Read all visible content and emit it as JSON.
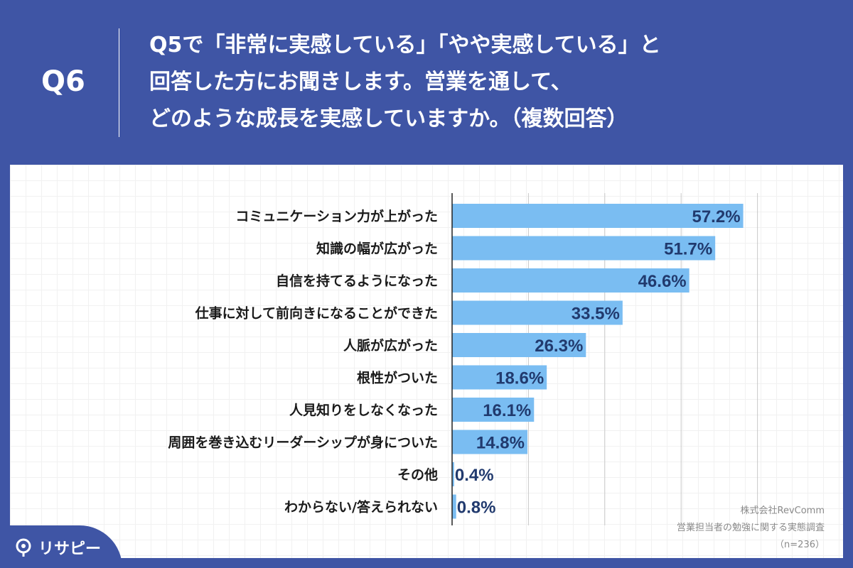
{
  "question": {
    "number": "Q6",
    "lines": [
      "Q5で「非常に実感している」「やや実感している」と",
      "回答した方にお聞きします。営業を通して、",
      "どのような成長を実感していますか。（複数回答）"
    ]
  },
  "chart_data": {
    "type": "bar",
    "orientation": "horizontal",
    "categories": [
      "コミュニケーション力が上がった",
      "知識の幅が広がった",
      "自信を持てるようになった",
      "仕事に対して前向きになることができた",
      "人脈が広がった",
      "根性がついた",
      "人見知りをしなくなった",
      "周囲を巻き込むリーダーシップが身についた",
      "その他",
      "わからない/答えられない"
    ],
    "values": [
      57.2,
      51.7,
      46.6,
      33.5,
      26.3,
      18.6,
      16.1,
      14.8,
      0.4,
      0.8
    ],
    "value_labels": [
      "57.2%",
      "51.7%",
      "46.6%",
      "33.5%",
      "26.3%",
      "18.6%",
      "16.1%",
      "14.8%",
      "0.4%",
      "0.8%"
    ],
    "xlim": [
      0,
      60
    ],
    "grid": true,
    "bar_color": "#7abdf2",
    "value_color": "#213a6e"
  },
  "source": {
    "company": "株式会社RevComm",
    "survey": "営業担当者の勉強に関する実態調査",
    "sample": "（n=236）"
  },
  "logo": {
    "text": "リサピー"
  },
  "colors": {
    "background": "#3f55a5",
    "panel": "#ffffff"
  }
}
